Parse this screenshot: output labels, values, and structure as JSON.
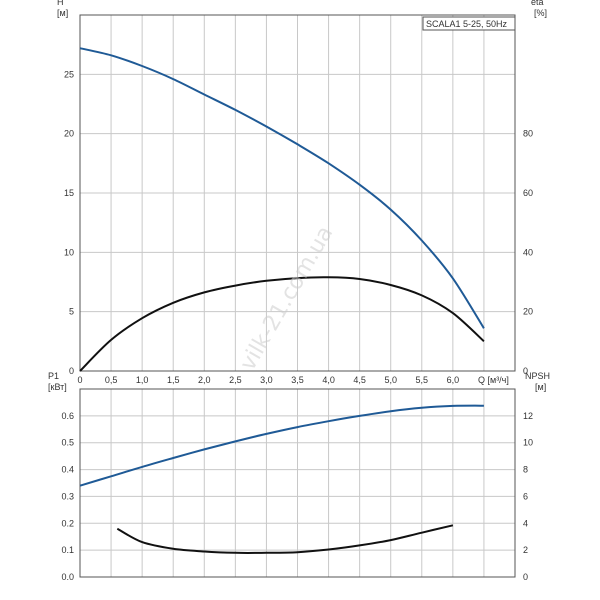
{
  "chart_data": [
    {
      "type": "line",
      "title": "SCALA1 5-25, 50Hz",
      "xlabel": "Q [м³/ч]",
      "ylabel_left": [
        "H",
        "[м]"
      ],
      "ylabel_right": [
        "eta",
        "[%]"
      ],
      "xlim": [
        0,
        7.0
      ],
      "ylim_left": [
        0,
        30
      ],
      "ylim_right": [
        0,
        120
      ],
      "xticks": [
        "0",
        "0,5",
        "1,0",
        "1,5",
        "2,0",
        "2,5",
        "3,0",
        "3,5",
        "4,0",
        "4,5",
        "5,0",
        "5,5",
        "6,0"
      ],
      "yticks_left": [
        "0",
        "5",
        "10",
        "15",
        "20",
        "25"
      ],
      "yticks_right": [
        "0",
        "20",
        "40",
        "60",
        "80"
      ],
      "grid": true,
      "series": [
        {
          "axis": "left",
          "color": "#1f5a96",
          "x": [
            0,
            0.5,
            1.0,
            1.5,
            2.0,
            2.5,
            3.0,
            3.5,
            4.0,
            4.5,
            5.0,
            5.5,
            6.0,
            6.5
          ],
          "y": [
            27.2,
            26.6,
            25.7,
            24.6,
            23.3,
            22.0,
            20.6,
            19.1,
            17.5,
            15.7,
            13.6,
            11.0,
            7.8,
            3.6
          ]
        },
        {
          "axis": "right",
          "color": "#111111",
          "x": [
            0,
            0.5,
            1.0,
            1.5,
            2.0,
            2.5,
            3.0,
            3.5,
            4.0,
            4.5,
            5.0,
            5.5,
            6.0,
            6.5
          ],
          "y": [
            0,
            10.5,
            17.8,
            23.0,
            26.5,
            28.8,
            30.4,
            31.3,
            31.6,
            31.0,
            29.0,
            25.5,
            19.5,
            10.0
          ]
        }
      ]
    },
    {
      "type": "line",
      "ylabel_left": [
        "P1",
        "[кВт]"
      ],
      "ylabel_right": [
        "NPSH",
        "[м]"
      ],
      "xlim": [
        0,
        7.0
      ],
      "ylim_left": [
        0,
        0.7
      ],
      "ylim_right": [
        0,
        14
      ],
      "yticks_left": [
        "0.0",
        "0.1",
        "0.2",
        "0.3",
        "0.4",
        "0.5",
        "0.6"
      ],
      "yticks_right": [
        "0",
        "2",
        "4",
        "6",
        "8",
        "10",
        "12"
      ],
      "grid": true,
      "series": [
        {
          "axis": "left",
          "color": "#1f5a96",
          "x": [
            0,
            0.5,
            1.0,
            1.5,
            2.0,
            2.5,
            3.0,
            3.5,
            4.0,
            4.5,
            5.0,
            5.5,
            6.0,
            6.5
          ],
          "y": [
            0.34,
            0.375,
            0.41,
            0.443,
            0.475,
            0.505,
            0.533,
            0.558,
            0.58,
            0.6,
            0.617,
            0.63,
            0.637,
            0.638
          ]
        },
        {
          "axis": "right",
          "color": "#111111",
          "x": [
            0.6,
            1.0,
            1.5,
            2.0,
            2.5,
            3.0,
            3.5,
            4.0,
            4.5,
            5.0,
            5.5,
            6.0
          ],
          "y": [
            3.6,
            2.6,
            2.1,
            1.9,
            1.8,
            1.8,
            1.85,
            2.05,
            2.35,
            2.75,
            3.3,
            3.85
          ]
        }
      ]
    }
  ],
  "watermark": "vilk-21.com.ua"
}
